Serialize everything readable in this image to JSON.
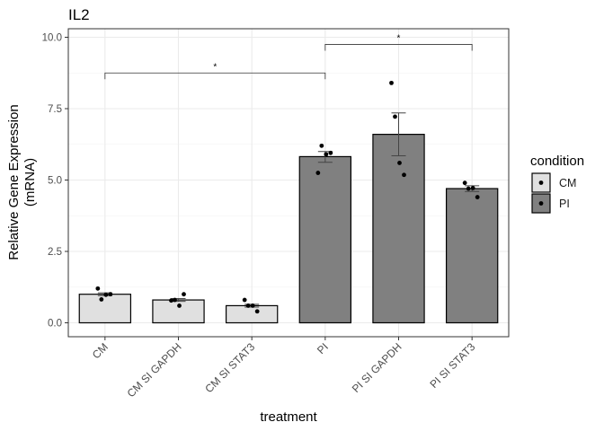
{
  "chart_data": {
    "type": "bar",
    "title": "IL2",
    "xlabel": "treatment",
    "ylabel_lines": [
      "Relative Gene Expression",
      "(mRNA)"
    ],
    "ylim": [
      0,
      10
    ],
    "yticks": [
      0,
      2.5,
      5,
      7.5,
      10
    ],
    "ytick_labels": [
      "0.0",
      "2.5",
      "5.0",
      "7.5",
      "10.0"
    ],
    "grid": true,
    "legend_position": "right",
    "categories": [
      "CM",
      "CM SI GAPDH",
      "CM SI STAT3",
      "PI",
      "PI SI GAPDH",
      "PI SI STAT3"
    ],
    "condition": [
      "CM",
      "CM",
      "CM",
      "PI",
      "PI",
      "PI"
    ],
    "values": [
      1.0,
      0.8,
      0.6,
      5.82,
      6.6,
      4.7
    ],
    "error_low": [
      0.95,
      0.75,
      0.55,
      5.62,
      5.85,
      4.6
    ],
    "error_high": [
      1.05,
      0.85,
      0.65,
      6.0,
      7.35,
      4.8
    ],
    "points": [
      [
        1.2,
        0.82,
        0.98,
        1.0
      ],
      [
        0.78,
        0.8,
        0.6,
        1.0
      ],
      [
        0.8,
        0.6,
        0.6,
        0.4
      ],
      [
        5.25,
        6.2,
        5.9,
        5.95
      ],
      [
        8.4,
        7.22,
        5.6,
        5.18
      ],
      [
        4.9,
        4.7,
        4.72,
        4.4
      ]
    ],
    "legend": {
      "title": "condition",
      "entries": [
        {
          "label": "CM",
          "fill": "#e0e0e0"
        },
        {
          "label": "PI",
          "fill": "#808080"
        }
      ]
    },
    "annotations": [
      {
        "from": "CM",
        "to": "PI",
        "y": 8.75,
        "label": "*"
      },
      {
        "from": "PI",
        "to": "PI SI STAT3",
        "y": 9.75,
        "label": "*"
      }
    ],
    "colors": {
      "CM": "#e0e0e0",
      "PI": "#808080",
      "grid": "#ebebeb",
      "axis": "#333333"
    }
  }
}
